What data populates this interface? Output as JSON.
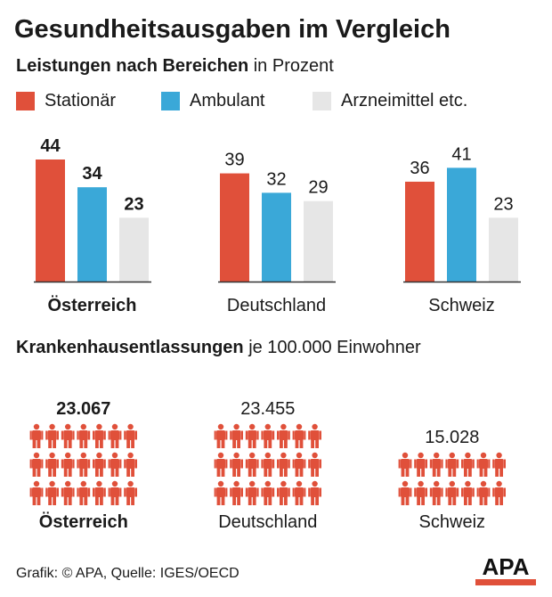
{
  "title": "Gesundheitsausgaben im Vergleich",
  "subtitle": {
    "bold": "Leistungen nach Bereichen",
    "rest": "in Prozent"
  },
  "legend": [
    {
      "label": "Stationär",
      "color": "#e0503a"
    },
    {
      "label": "Ambulant",
      "color": "#3aa8d8"
    },
    {
      "label": "Arzneimittel etc.",
      "color": "#e6e6e6"
    }
  ],
  "chart_data": [
    {
      "type": "bar",
      "title": "Leistungen nach Bereichen in Prozent",
      "categories": [
        "Österreich",
        "Deutschland",
        "Schweiz"
      ],
      "highlight": "Österreich",
      "series": [
        {
          "name": "Stationär",
          "values": [
            44,
            39,
            36
          ]
        },
        {
          "name": "Ambulant",
          "values": [
            34,
            32,
            41
          ]
        },
        {
          "name": "Arzneimittel etc.",
          "values": [
            23,
            29,
            23
          ]
        }
      ],
      "ylim": [
        0,
        44
      ],
      "xlabel": "",
      "ylabel": ""
    },
    {
      "type": "pictogram",
      "title": "Krankenhausentlassungen je 100.000 Einwohner",
      "categories": [
        "Österreich",
        "Deutschland",
        "Schweiz"
      ],
      "values": [
        23067,
        23455,
        15028
      ],
      "labels": [
        "23.067",
        "23.455",
        "15.028"
      ],
      "icon_counts": [
        21,
        21,
        14
      ],
      "icon_color": "#e0503a"
    }
  ],
  "section2": {
    "bold": "Krankenhausentlassungen",
    "rest": "je 100.000 Einwohner"
  },
  "footer": "Grafik: © APA, Quelle: IGES/OECD",
  "logo": "APA"
}
